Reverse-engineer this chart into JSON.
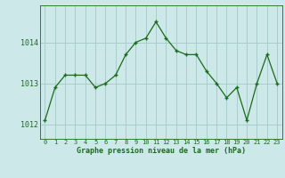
{
  "x": [
    0,
    1,
    2,
    3,
    4,
    5,
    6,
    7,
    8,
    9,
    10,
    11,
    12,
    13,
    14,
    15,
    16,
    17,
    18,
    19,
    20,
    21,
    22,
    23
  ],
  "y": [
    1012.1,
    1012.9,
    1013.2,
    1013.2,
    1013.2,
    1012.9,
    1013.0,
    1013.2,
    1013.7,
    1014.0,
    1014.1,
    1014.5,
    1014.1,
    1013.8,
    1013.7,
    1013.7,
    1013.3,
    1013.0,
    1012.65,
    1012.9,
    1012.1,
    1013.0,
    1013.7,
    1013.0
  ],
  "line_color": "#1a6b1a",
  "marker_color": "#1a6b1a",
  "bg_color": "#cce8e8",
  "grid_color": "#aacccc",
  "xlabel": "Graphe pression niveau de la mer (hPa)",
  "xlabel_color": "#1a6b1a",
  "tick_color": "#1a6b1a",
  "ylim": [
    1011.65,
    1014.9
  ],
  "yticks": [
    1012,
    1013,
    1014
  ],
  "xticks": [
    0,
    1,
    2,
    3,
    4,
    5,
    6,
    7,
    8,
    9,
    10,
    11,
    12,
    13,
    14,
    15,
    16,
    17,
    18,
    19,
    20,
    21,
    22,
    23
  ],
  "fig_bg_color": "#cce8e8"
}
